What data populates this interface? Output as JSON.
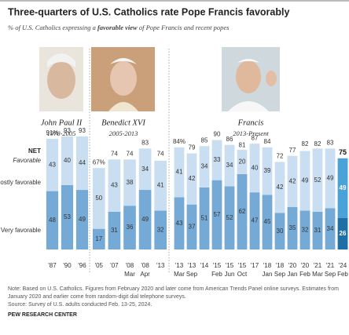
{
  "chart_data": {
    "type": "bar",
    "stacked": true,
    "title": "Three-quarters of U.S. Catholics rate Pope Francis favorably",
    "subtitle": [
      "% of U.S. Catholics expressing a ",
      "favorable view",
      " of Pope Francis and recent popes"
    ],
    "net_label": "NET",
    "net_sublabel": "Favorable",
    "groups": [
      {
        "name": "John Paul II",
        "years": "1978-2005",
        "categories": [
          "'87",
          "'90",
          "'96"
        ],
        "sublabels": [
          null,
          null,
          null
        ]
      },
      {
        "name": "Benedict XVI",
        "years": "2005-2013",
        "categories": [
          "'05",
          "'07",
          "'08",
          "'08",
          "'13"
        ],
        "sublabels": [
          null,
          null,
          "Mar",
          "Apr",
          null
        ]
      },
      {
        "name": "Francis",
        "years": "2013-Present",
        "categories": [
          "'13",
          "'13",
          "'14",
          "'15",
          "'15",
          "'15",
          "'17",
          "'18",
          "'18",
          "'20",
          "'20",
          "'21",
          "'21",
          "'24"
        ],
        "sublabels": [
          "Mar",
          "Sep",
          null,
          "Feb",
          "Jun",
          "Oct",
          null,
          "Jan",
          "Sep",
          "Jan",
          "Feb",
          "Mar",
          "Sep",
          "Feb"
        ]
      }
    ],
    "series": [
      {
        "name": "Very favorable",
        "color": "#75aad6",
        "highlight_color": "#1d6fa5",
        "values": [
          48,
          53,
          49,
          17,
          31,
          36,
          49,
          32,
          43,
          37,
          51,
          57,
          52,
          62,
          47,
          45,
          30,
          35,
          32,
          31,
          34,
          26
        ]
      },
      {
        "name": "Mostly favorable",
        "color": "#c9def0",
        "highlight_color": "#49a3d8",
        "values": [
          43,
          40,
          44,
          50,
          43,
          38,
          34,
          41,
          41,
          42,
          34,
          33,
          34,
          20,
          40,
          39,
          42,
          42,
          49,
          52,
          49,
          49
        ]
      }
    ],
    "net": {
      "values": [
        91,
        93,
        93,
        67,
        74,
        74,
        83,
        74,
        84,
        79,
        85,
        90,
        86,
        81,
        87,
        84,
        72,
        77,
        82,
        82,
        83,
        75
      ],
      "value_labels": [
        "91%",
        null,
        null,
        "67%",
        null,
        null,
        null,
        null,
        "84%",
        null,
        null,
        null,
        null,
        null,
        null,
        null,
        null,
        null,
        null,
        null,
        null,
        null
      ]
    },
    "highlight": "'24",
    "notes": [
      "Note: Based on U.S. Catholics. Figures from February 2020 and later come from American Trends Panel online surveys. Estimates from January 2020 and earlier come from random-digit dial telephone surveys.",
      "Source: Survey of U.S. adults conducted Feb. 13-25, 2024."
    ],
    "source": "PEW RESEARCH CENTER"
  }
}
